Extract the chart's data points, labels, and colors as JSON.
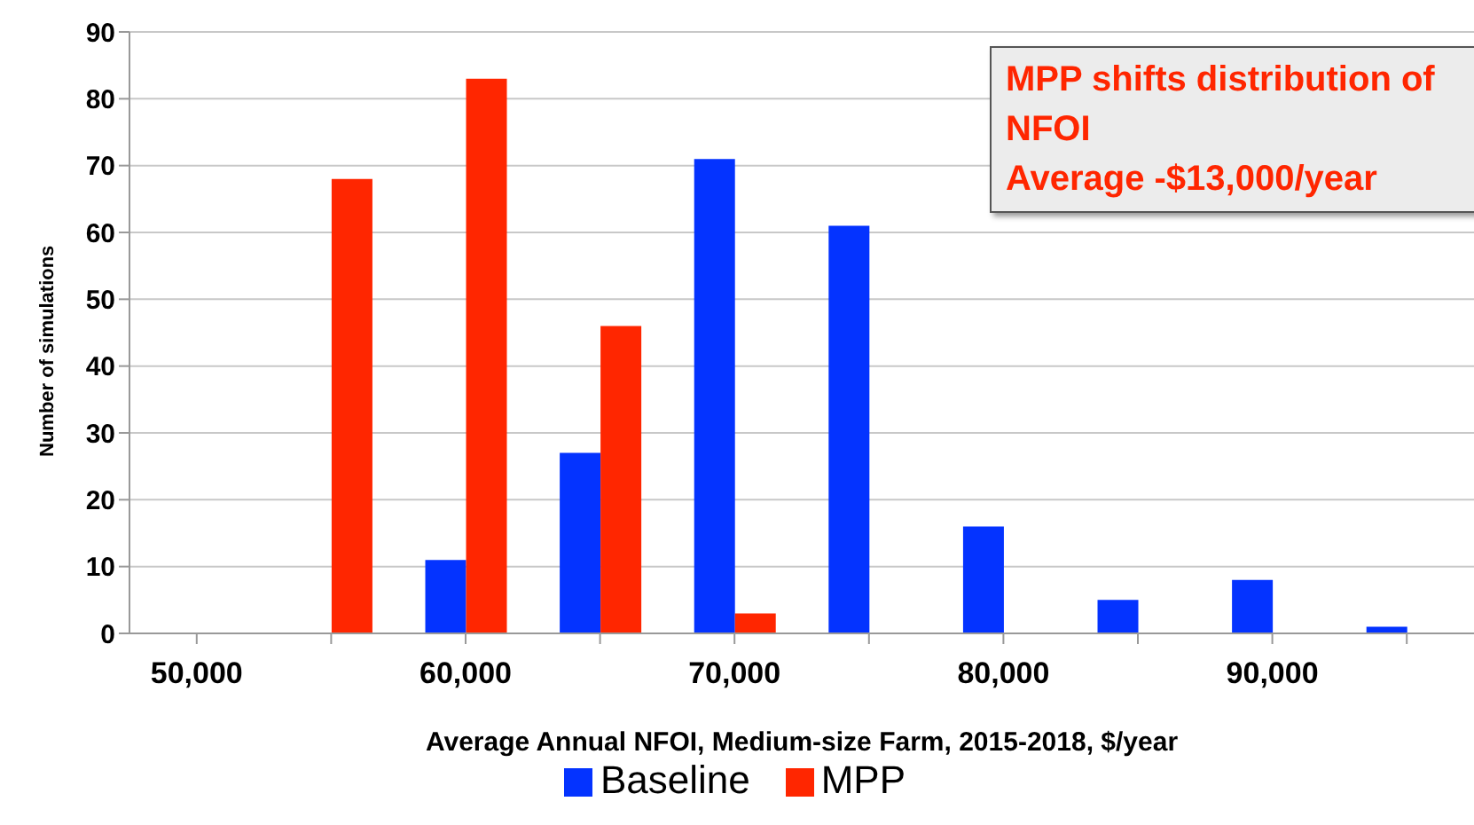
{
  "chart_data": {
    "type": "bar",
    "xlabel": "Average Annual NFOI, Medium-size Farm, 2015-2018, $/year",
    "ylabel": "Number of simulations",
    "categories": [
      "50,000",
      null,
      "60,000",
      null,
      "70,000",
      null,
      "80,000",
      null,
      "90,000",
      null
    ],
    "series": [
      {
        "name": "Baseline",
        "color": "#0433ff",
        "values": [
          0,
          0,
          11,
          27,
          71,
          61,
          16,
          5,
          8,
          1
        ]
      },
      {
        "name": "MPP",
        "color": "#ff2600",
        "values": [
          0,
          68,
          83,
          46,
          3,
          0,
          0,
          0,
          0,
          0
        ]
      }
    ],
    "ylim": [
      0,
      90
    ],
    "yticks": [
      0,
      10,
      20,
      30,
      40,
      50,
      60,
      70,
      80,
      90
    ],
    "grid": "y",
    "legend": "bottom",
    "annotations": [
      "MPP shifts distribution of NFOI",
      "Average -$13,000/year"
    ]
  }
}
